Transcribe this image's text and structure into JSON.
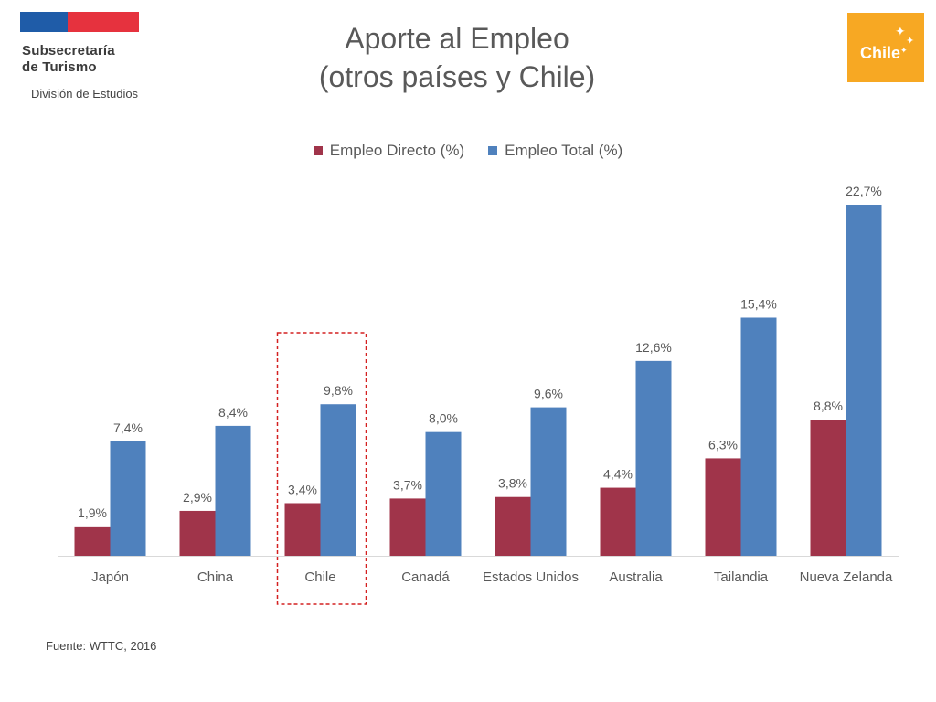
{
  "header": {
    "org_line_1": "Subsecretaría",
    "org_line_2": "de Turismo",
    "division": "División de Estudios",
    "brand_logo_text": "Chile"
  },
  "title_line_1": "Aporte al Empleo",
  "title_line_2": "(otros países y Chile)",
  "source": "Fuente: WTTC, 2016",
  "colors": {
    "directo": "#a0344a",
    "total": "#4f81bd",
    "highlight": "#d42020"
  },
  "chart_data": {
    "type": "bar",
    "categories": [
      "Japón",
      "China",
      "Chile",
      "Canadá",
      "Estados Unidos",
      "Australia",
      "Tailandia",
      "Nueva Zelanda"
    ],
    "series": [
      {
        "name": "Empleo Directo (%)",
        "values": [
          1.9,
          2.9,
          3.4,
          3.7,
          3.8,
          4.4,
          6.3,
          8.8
        ],
        "labels": [
          "1,9%",
          "2,9%",
          "3,4%",
          "3,7%",
          "3,8%",
          "4,4%",
          "6,3%",
          "8,8%"
        ]
      },
      {
        "name": "Empleo Total (%)",
        "values": [
          7.4,
          8.4,
          9.8,
          8.0,
          9.6,
          12.6,
          15.4,
          22.7
        ],
        "labels": [
          "7,4%",
          "8,4%",
          "9,8%",
          "8,0%",
          "9,6%",
          "12,6%",
          "15,4%",
          "22,7%"
        ]
      }
    ],
    "highlighted_category": "Chile",
    "ylim": [
      0,
      25
    ],
    "legend_position": "top-center",
    "grid": false
  }
}
